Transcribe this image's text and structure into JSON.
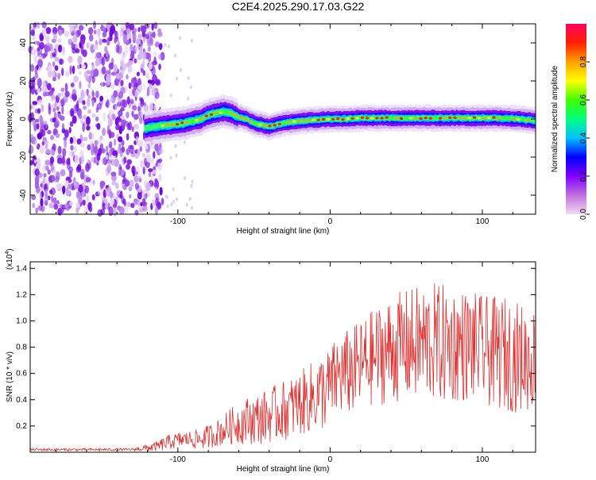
{
  "title": "C2E4.2025.290.17.03.G22",
  "colors": {
    "signal_line": "#e03030",
    "speckle": "#8a2be2",
    "colorbar_stops": [
      "#f2d9f2",
      "#c070e0",
      "#7f00ff",
      "#0000ff",
      "#00c0ff",
      "#00ff80",
      "#40ff00",
      "#ffff00",
      "#ffa000",
      "#ff2000",
      "#ff0060"
    ]
  },
  "chart_data": [
    {
      "type": "heatmap",
      "name": "spectrogram",
      "xlabel": "Height of straight line (km)",
      "ylabel": "Frequency (Hz)",
      "xlim": [
        -197,
        135
      ],
      "ylim": [
        -50,
        50
      ],
      "x_ticks": [
        {
          "value": -100,
          "label": "-100"
        },
        {
          "value": 0,
          "label": "0"
        },
        {
          "value": 100,
          "label": "100"
        }
      ],
      "y_ticks": [
        {
          "value": 40,
          "label": "40"
        },
        {
          "value": 20,
          "label": "20"
        },
        {
          "value": 0,
          "label": "0"
        },
        {
          "value": -20,
          "label": "-20"
        },
        {
          "value": -40,
          "label": "-40"
        }
      ],
      "noise_region_x": [
        -197,
        -110
      ],
      "ridge_center_hz": {
        "x": [
          -122,
          -115,
          -105,
          -95,
          -85,
          -80,
          -75,
          -70,
          -65,
          -60,
          -55,
          -50,
          -45,
          -40,
          -35,
          -30,
          -20,
          -10,
          0,
          10,
          20,
          30,
          50,
          70,
          90,
          110,
          125,
          135
        ],
        "y": [
          -5,
          -4,
          -3,
          -2,
          0,
          2,
          3,
          4,
          3,
          1,
          0,
          -2,
          -3,
          -4,
          -3,
          -2,
          -1,
          -0.5,
          0,
          0,
          0.5,
          0.5,
          0.5,
          0.5,
          0.5,
          0.5,
          0,
          -1
        ]
      },
      "colorbar": {
        "label": "Normalized spectral amplitude",
        "range": [
          0,
          1
        ],
        "ticks": [
          {
            "value": 0.0,
            "label": "0.0"
          },
          {
            "value": 0.2,
            "label": "0.2"
          },
          {
            "value": 0.4,
            "label": "0.4"
          },
          {
            "value": 0.6,
            "label": "0.6"
          },
          {
            "value": 0.8,
            "label": "0.8"
          }
        ]
      }
    },
    {
      "type": "line",
      "name": "snr",
      "xlabel": "Height of straight line (km)",
      "ylabel": "SNR (10 * v/v)",
      "scale_label": "(x10",
      "scale_exp": "4",
      "scale_close": ")",
      "xlim": [
        -197,
        135
      ],
      "ylim": [
        0,
        1.45
      ],
      "x_ticks": [
        {
          "value": -100,
          "label": "-100"
        },
        {
          "value": 0,
          "label": "0"
        },
        {
          "value": 100,
          "label": "100"
        }
      ],
      "y_ticks": [
        {
          "value": 0.2,
          "label": "0.2"
        },
        {
          "value": 0.4,
          "label": "0.4"
        },
        {
          "value": 0.6,
          "label": "0.6"
        },
        {
          "value": 0.8,
          "label": "0.8"
        },
        {
          "value": 1.0,
          "label": "1.0"
        },
        {
          "value": 1.2,
          "label": "1.2"
        },
        {
          "value": 1.4,
          "label": "1.4"
        }
      ],
      "envelope": {
        "x": [
          -197,
          -130,
          -115,
          -105,
          -95,
          -85,
          -75,
          -65,
          -55,
          -45,
          -35,
          -25,
          -15,
          -5,
          0,
          5,
          15,
          25,
          35,
          45,
          55,
          65,
          75,
          85,
          95,
          105,
          115,
          125,
          135
        ],
        "mean": [
          0.02,
          0.02,
          0.04,
          0.08,
          0.1,
          0.1,
          0.14,
          0.2,
          0.24,
          0.26,
          0.3,
          0.34,
          0.4,
          0.46,
          0.5,
          0.58,
          0.62,
          0.7,
          0.76,
          0.8,
          0.82,
          0.84,
          0.82,
          0.82,
          0.8,
          0.76,
          0.75,
          0.72,
          0.7
        ],
        "spread": [
          0.01,
          0.01,
          0.04,
          0.06,
          0.06,
          0.08,
          0.1,
          0.14,
          0.18,
          0.2,
          0.22,
          0.24,
          0.26,
          0.3,
          0.3,
          0.32,
          0.34,
          0.36,
          0.4,
          0.42,
          0.44,
          0.46,
          0.46,
          0.44,
          0.42,
          0.42,
          0.44,
          0.42,
          0.4
        ]
      }
    }
  ]
}
